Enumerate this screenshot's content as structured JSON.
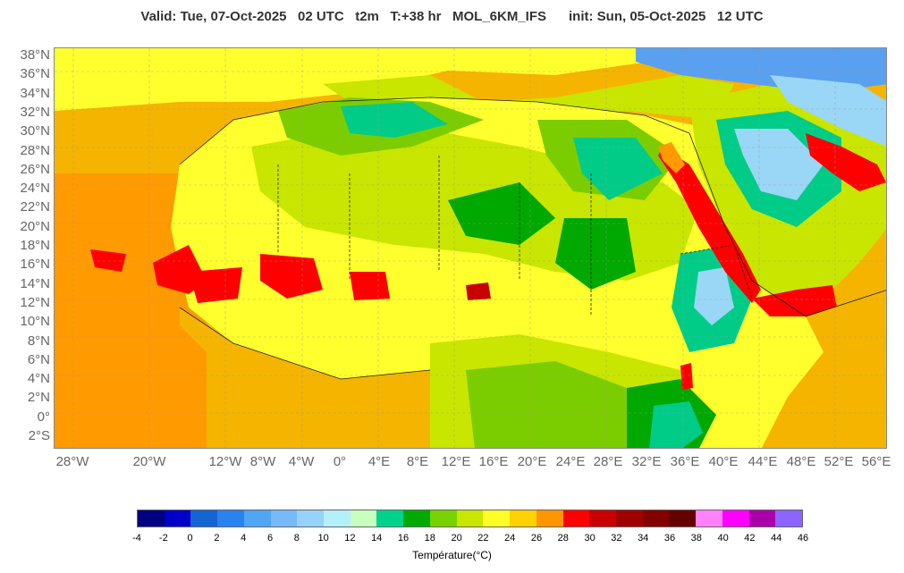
{
  "header": {
    "title": "Valid: Tue, 07-Oct-2025   02 UTC   t2m   T:+38 hr   MOL_6KM_IFS      init: Sun, 05-Oct-2025   12 UTC"
  },
  "map": {
    "lat_labels": [
      "38°N",
      "36°N",
      "34°N",
      "32°N",
      "30°N",
      "28°N",
      "26°N",
      "24°N",
      "22°N",
      "20°N",
      "18°N",
      "16°N",
      "14°N",
      "12°N",
      "10°N",
      "8°N",
      "6°N",
      "4°N",
      "2°N",
      "0°",
      "2°S"
    ],
    "lon_labels": [
      "28°W",
      "20°W",
      "12°W",
      "8°W",
      "4°W",
      "0°",
      "4°E",
      "8°E",
      "12°E",
      "16°E",
      "20°E",
      "24°E",
      "28°E",
      "32°E",
      "36°E",
      "40°E",
      "44°E",
      "48°E",
      "52°E",
      "56°E"
    ],
    "colors": {
      "ocean_warm": "#f5b400",
      "ocean_hot": "#ff9a00",
      "land_yellow": "#ffff2e",
      "land_lime": "#c8e600",
      "land_green": "#7ccd00",
      "land_darkgreen": "#00a800",
      "land_teal": "#00cc88",
      "cool_blue": "#9ad6f5",
      "cold_blue": "#5aa0f0",
      "red_sea_hot": "#ff0000",
      "dark_red": "#c80000"
    }
  },
  "legend": {
    "ticks": [
      "-4",
      "-2",
      "0",
      "2",
      "4",
      "6",
      "8",
      "10",
      "12",
      "14",
      "16",
      "18",
      "20",
      "22",
      "24",
      "26",
      "28",
      "30",
      "32",
      "34",
      "36",
      "38",
      "40",
      "42",
      "44",
      "46"
    ],
    "colors": [
      "#000080",
      "#0000c8",
      "#1464d2",
      "#2882f0",
      "#50a5f5",
      "#78b9fa",
      "#96d2fa",
      "#b4f0fa",
      "#c8ffbe",
      "#00d28c",
      "#00aa00",
      "#78d200",
      "#c8e600",
      "#ffff28",
      "#ffd200",
      "#ff9600",
      "#ff0000",
      "#c80000",
      "#a00000",
      "#820000",
      "#640000",
      "#ff82fa",
      "#ff00ff",
      "#aa00aa",
      "#8c64ff"
    ],
    "label": "Température(°C)"
  }
}
